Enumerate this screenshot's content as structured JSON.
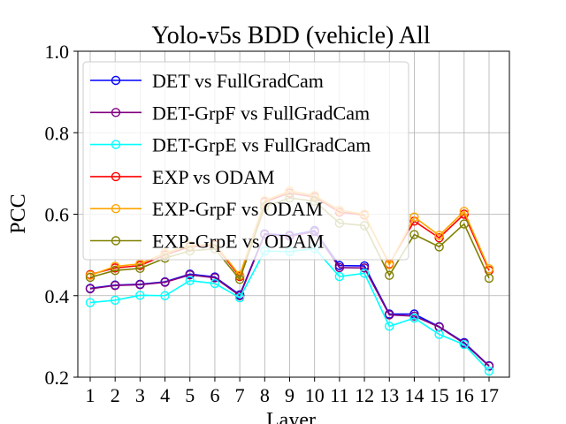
{
  "chart_data": {
    "type": "line",
    "title": "Yolo-v5s BDD (vehicle) All",
    "xlabel": "Layer",
    "ylabel": "PCC",
    "x": [
      1,
      2,
      3,
      4,
      5,
      6,
      7,
      8,
      9,
      10,
      11,
      12,
      13,
      14,
      15,
      16,
      17
    ],
    "xticks": [
      "1",
      "2",
      "3",
      "4",
      "5",
      "6",
      "7",
      "8",
      "9",
      "10",
      "11",
      "12",
      "13",
      "14",
      "15",
      "16",
      "17"
    ],
    "ylim": [
      0.2,
      1.0
    ],
    "yticks": [
      "0.2",
      "0.4",
      "0.6",
      "0.8",
      "1.0"
    ],
    "grid": true,
    "legend_position": "top-left",
    "series": [
      {
        "name": "DET vs FullGradCam",
        "color": "#0000ff",
        "values": [
          0.418,
          0.426,
          0.428,
          0.434,
          0.453,
          0.446,
          0.402,
          0.552,
          0.548,
          0.56,
          0.474,
          0.473,
          0.355,
          0.355,
          0.324,
          0.285,
          0.228
        ]
      },
      {
        "name": "DET-GrpF vs FullGradCam",
        "color": "#800080",
        "values": [
          0.417,
          0.425,
          0.427,
          0.433,
          0.451,
          0.444,
          0.4,
          0.55,
          0.546,
          0.557,
          0.469,
          0.468,
          0.353,
          0.35,
          0.323,
          0.283,
          0.227
        ]
      },
      {
        "name": "DET-GrpE vs FullGradCam",
        "color": "#00ffff",
        "values": [
          0.383,
          0.389,
          0.401,
          0.4,
          0.437,
          0.43,
          0.395,
          0.51,
          0.508,
          0.516,
          0.447,
          0.455,
          0.325,
          0.345,
          0.305,
          0.28,
          0.215
        ]
      },
      {
        "name": "EXP vs ODAM",
        "color": "#ff0000",
        "values": [
          0.452,
          0.468,
          0.474,
          0.5,
          0.52,
          0.524,
          0.447,
          0.63,
          0.652,
          0.642,
          0.605,
          0.598,
          0.478,
          0.583,
          0.542,
          0.6,
          0.462
        ]
      },
      {
        "name": "EXP-GrpF vs ODAM",
        "color": "#ffa500",
        "values": [
          0.45,
          0.472,
          0.478,
          0.505,
          0.523,
          0.527,
          0.45,
          0.633,
          0.657,
          0.646,
          0.61,
          0.6,
          0.476,
          0.593,
          0.548,
          0.607,
          0.466
        ]
      },
      {
        "name": "EXP-GrpE vs ODAM",
        "color": "#808000",
        "values": [
          0.445,
          0.462,
          0.467,
          0.492,
          0.51,
          0.515,
          0.44,
          0.618,
          0.64,
          0.632,
          0.578,
          0.572,
          0.45,
          0.55,
          0.52,
          0.576,
          0.443
        ]
      }
    ]
  }
}
